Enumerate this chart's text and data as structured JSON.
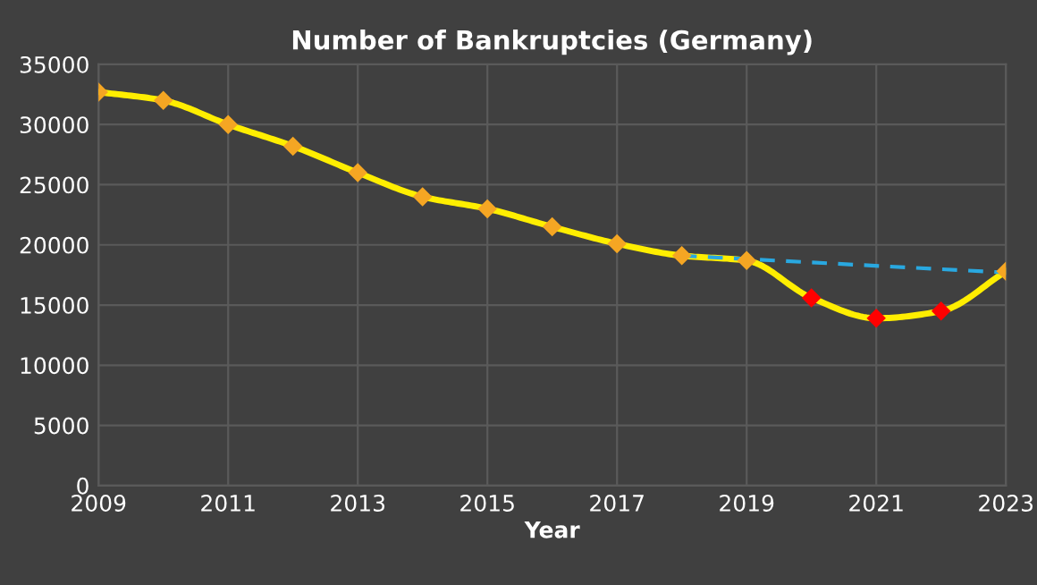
{
  "chart_data": {
    "type": "line",
    "title": "Number of Bankruptcies (Germany)",
    "xlabel": "Year",
    "x": [
      2009,
      2010,
      2011,
      2012,
      2013,
      2014,
      2015,
      2016,
      2017,
      2018,
      2019,
      2020,
      2021,
      2022,
      2023
    ],
    "series": [
      {
        "color": "#ffee00",
        "marker": "diamond",
        "colors": [
          "#f5a623",
          "#f5a623",
          "#f5a623",
          "#f5a623",
          "#f5a623",
          "#f5a623",
          "#f5a623",
          "#f5a623",
          "#f5a623",
          "#f5a623",
          "#f5a623",
          "#ff0000",
          "#ff0000",
          "#ff0000",
          "#f5a623"
        ],
        "line_style": "solid",
        "values": [
          32700,
          32000,
          30000,
          28200,
          26000,
          24000,
          23000,
          21500,
          20100,
          19100,
          18700,
          15600,
          13900,
          14500,
          17800
        ]
      },
      {
        "color": "#29a8e0",
        "marker": "none",
        "line_style": "dashed",
        "x": [
          2018,
          2023
        ],
        "values": [
          19100,
          17700
        ]
      }
    ],
    "xlim": [
      2009,
      2023
    ],
    "xticks": [
      2009,
      2011,
      2013,
      2015,
      2017,
      2019,
      2021,
      2023
    ],
    "ylim": [
      0,
      35000
    ],
    "yticks": [
      0,
      5000,
      10000,
      15000,
      20000,
      25000,
      30000,
      35000
    ],
    "grid": true,
    "legend": false
  }
}
